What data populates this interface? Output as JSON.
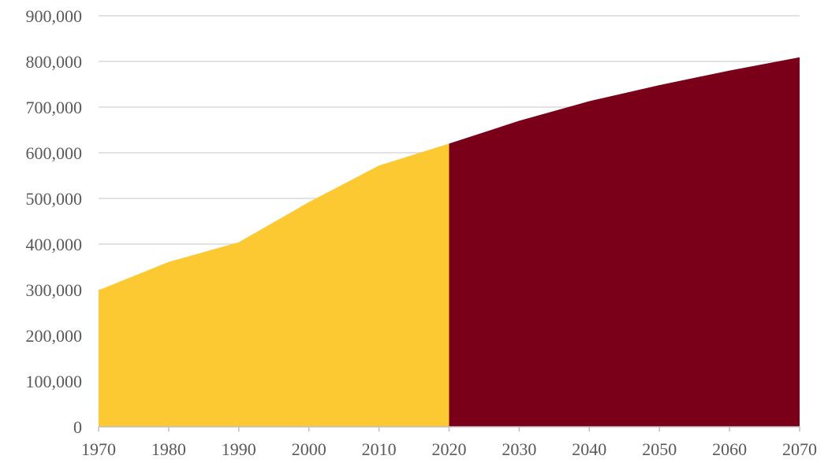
{
  "chart_data": {
    "type": "area",
    "x": [
      1970,
      1980,
      1990,
      2000,
      2010,
      2020,
      2030,
      2040,
      2050,
      2060,
      2070
    ],
    "xlabel": "",
    "ylabel": "",
    "title": "",
    "ylim": [
      0,
      900000
    ],
    "grid": true,
    "legend": "none",
    "y_tick_labels": [
      "0",
      "100,000",
      "200,000",
      "300,000",
      "400,000",
      "500,000",
      "600,000",
      "700,000",
      "800,000",
      "900,000"
    ],
    "x_tick_labels": [
      "1970",
      "1980",
      "1990",
      "2000",
      "2010",
      "2020",
      "2030",
      "2040",
      "2050",
      "2060",
      "2070"
    ],
    "series": [
      {
        "color": "#fdc933",
        "x": [
          1970,
          1980,
          1990,
          2000,
          2010,
          2020
        ],
        "values": [
          299000,
          361000,
          404000,
          492000,
          572000,
          620000
        ]
      },
      {
        "color": "#7a0019",
        "x": [
          2020,
          2030,
          2040,
          2050,
          2060,
          2070
        ],
        "values": [
          620000,
          670000,
          713000,
          748000,
          780000,
          809000
        ]
      }
    ]
  }
}
